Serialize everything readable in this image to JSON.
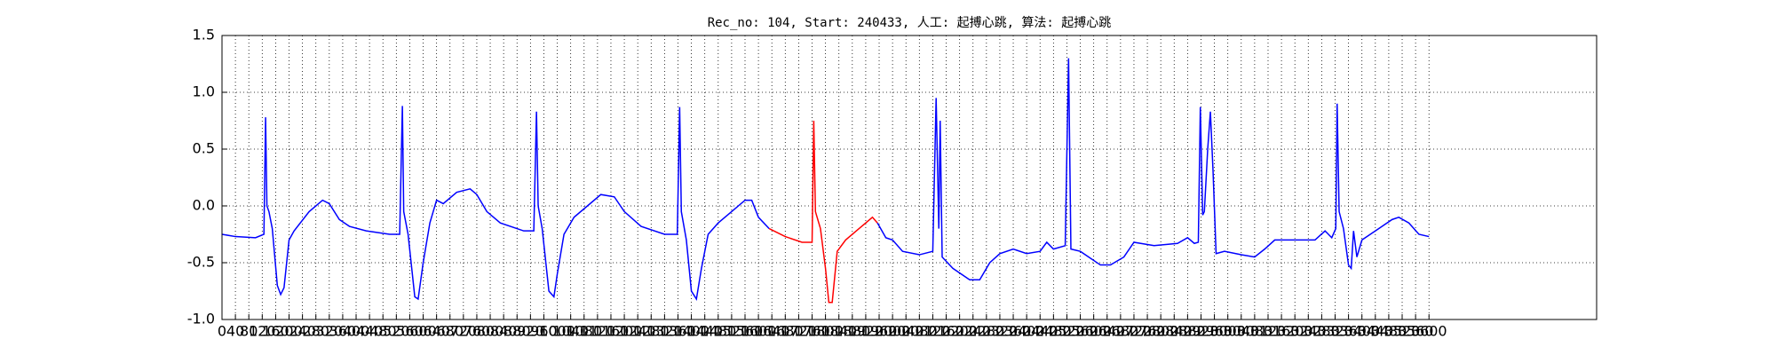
{
  "chart_data": {
    "type": "line",
    "title": "Rec_no: 104, Start: 240433, 人工: 起搏心跳, 算法: 起搏心跳",
    "xlim": [
      0,
      4100
    ],
    "ylim": [
      -1.0,
      1.5
    ],
    "yticks": [
      {
        "value": -1.0,
        "label": "-1.0"
      },
      -0.5,
      {
        "value": 0.0,
        "label": "0.0"
      },
      0.5,
      {
        "value": 1.0,
        "label": "1.0"
      },
      1.5
    ],
    "xticks": [
      0,
      40,
      80,
      120,
      160,
      200,
      240,
      280,
      320,
      360,
      400,
      440,
      480,
      520,
      560,
      600,
      640,
      680,
      720,
      760,
      800,
      840,
      880,
      920,
      960,
      1000,
      1040,
      1080,
      1120,
      1160,
      1200,
      1240,
      1280,
      1320,
      1360,
      1400,
      1440,
      1480,
      1520,
      1560,
      1600,
      1640,
      1680,
      1720,
      1760,
      1800,
      1840,
      1880,
      1920,
      1960,
      2000,
      2040,
      2080,
      2120,
      2160,
      2200,
      2240,
      2280,
      2320,
      2360,
      2400,
      2440,
      2480,
      2520,
      2560,
      2600,
      2640,
      2680,
      2720,
      2760,
      2800,
      2840,
      2880,
      2920,
      2960,
      3000,
      3040,
      3080,
      3120,
      3160,
      3200,
      3240,
      3280,
      3320,
      3360,
      3400,
      3440,
      3480,
      3520,
      3560,
      3600
    ],
    "grid": true,
    "series": [
      {
        "color": "#0000ff",
        "x": [
          0,
          40,
          100,
          125,
          130,
          134,
          140,
          150,
          165,
          175,
          185,
          200,
          215,
          260,
          300,
          320,
          350,
          380,
          430,
          500,
          530,
          538,
          542,
          555,
          575,
          585,
          600,
          620,
          640,
          660,
          700,
          740,
          760,
          790,
          830,
          900,
          930,
          938,
          943,
          955,
          975,
          990,
          1000,
          1020,
          1050,
          1090,
          1130,
          1170,
          1200,
          1250,
          1320,
          1358,
          1365,
          1370,
          1385,
          1400,
          1415,
          1430,
          1450,
          1480,
          1520,
          1560,
          1580,
          1600,
          1632
        ],
        "values": [
          -0.25,
          -0.27,
          -0.28,
          -0.25,
          0.78,
          0.0,
          -0.05,
          -0.2,
          -0.7,
          -0.78,
          -0.72,
          -0.3,
          -0.22,
          -0.05,
          0.05,
          0.02,
          -0.12,
          -0.18,
          -0.22,
          -0.25,
          -0.25,
          0.88,
          -0.05,
          -0.25,
          -0.8,
          -0.82,
          -0.5,
          -0.15,
          0.05,
          0.02,
          0.12,
          0.15,
          0.1,
          -0.05,
          -0.15,
          -0.22,
          -0.22,
          0.83,
          0.0,
          -0.2,
          -0.75,
          -0.8,
          -0.6,
          -0.25,
          -0.1,
          0.0,
          0.1,
          0.08,
          -0.05,
          -0.18,
          -0.25,
          -0.25,
          0.87,
          -0.05,
          -0.3,
          -0.75,
          -0.82,
          -0.55,
          -0.25,
          -0.15,
          -0.05,
          0.05,
          0.05,
          -0.1,
          -0.2
        ]
      },
      {
        "color": "#ff0000",
        "x": [
          1632,
          1680,
          1730,
          1760,
          1765,
          1770,
          1785,
          1800,
          1810,
          1820,
          1835,
          1860,
          1900,
          1940,
          1955
        ],
        "values": [
          -0.2,
          -0.27,
          -0.32,
          -0.32,
          0.75,
          -0.05,
          -0.2,
          -0.55,
          -0.85,
          -0.85,
          -0.4,
          -0.3,
          -0.2,
          -0.1,
          -0.15
        ]
      },
      {
        "color": "#0000ff",
        "x": [
          1955,
          1980,
          2000,
          2030,
          2080,
          2120,
          2130,
          2138,
          2142,
          2148,
          2180,
          2230,
          2260,
          2290,
          2320,
          2360,
          2400,
          2440,
          2460,
          2480,
          2515,
          2525,
          2532,
          2560,
          2620,
          2650,
          2690,
          2720,
          2780,
          2850,
          2880,
          2900,
          2912,
          2918,
          2925,
          2930,
          2940,
          2948,
          2956,
          2965,
          2990,
          3040,
          3080,
          3110,
          3140,
          3200,
          3260,
          3290,
          3310,
          3322,
          3326,
          3332,
          3345,
          3360,
          3368,
          3375,
          3385,
          3400,
          3450,
          3490,
          3510,
          3540,
          3570,
          3600
        ],
        "values": [
          -0.15,
          -0.28,
          -0.3,
          -0.4,
          -0.43,
          -0.4,
          0.95,
          -0.2,
          0.75,
          -0.45,
          -0.55,
          -0.65,
          -0.65,
          -0.5,
          -0.42,
          -0.38,
          -0.42,
          -0.4,
          -0.32,
          -0.38,
          -0.35,
          1.3,
          -0.38,
          -0.4,
          -0.52,
          -0.52,
          -0.45,
          -0.32,
          -0.35,
          -0.33,
          -0.28,
          -0.33,
          -0.32,
          0.87,
          -0.08,
          -0.05,
          0.5,
          0.83,
          0.3,
          -0.42,
          -0.4,
          -0.43,
          -0.45,
          -0.38,
          -0.3,
          -0.3,
          -0.3,
          -0.22,
          -0.28,
          -0.2,
          0.9,
          -0.05,
          -0.2,
          -0.52,
          -0.55,
          -0.22,
          -0.45,
          -0.3,
          -0.2,
          -0.12,
          -0.1,
          -0.15,
          -0.25,
          -0.27
        ]
      }
    ]
  }
}
